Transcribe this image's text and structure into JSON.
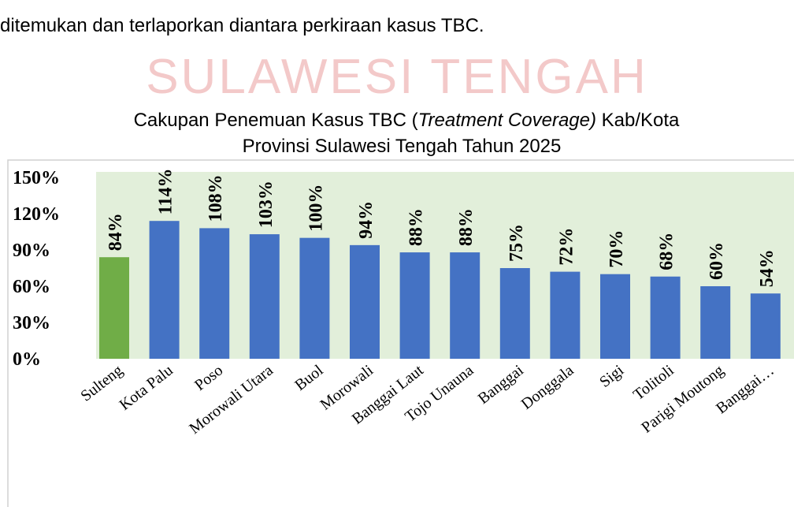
{
  "intro_text": "ditemukan dan terlaporkan diantara perkiraan kasus TBC.",
  "watermark": "SULAWESI TENGAH",
  "chart_data": {
    "type": "bar",
    "title": [
      "Cakupan Penemuan Kasus TBC (",
      "Treatment Coverage)",
      " Kab/Kota",
      "Provinsi Sulawesi Tengah Tahun 2025"
    ],
    "categories": [
      "Sulteng",
      "Kota Palu",
      "Poso",
      "Morowali Utara",
      "Buol",
      "Morowali",
      "Banggai Laut",
      "Tojo Unauna",
      "Banggai",
      "Donggala",
      "Sigi",
      "Tolitoli",
      "Parigi Moutong",
      "Banggai…"
    ],
    "values": [
      84,
      114,
      108,
      103,
      100,
      94,
      88,
      88,
      75,
      72,
      70,
      68,
      60,
      54
    ],
    "value_labels": [
      "84%",
      "114%",
      "108%",
      "103%",
      "100%",
      "94%",
      "88%",
      "88%",
      "75%",
      "72%",
      "70%",
      "68%",
      "60%",
      "54%"
    ],
    "colors": [
      "#70ad47",
      "#4472c4",
      "#4472c4",
      "#4472c4",
      "#4472c4",
      "#4472c4",
      "#4472c4",
      "#4472c4",
      "#4472c4",
      "#4472c4",
      "#4472c4",
      "#4472c4",
      "#4472c4",
      "#4472c4"
    ],
    "plot_background": "#e2efda",
    "ylim": [
      0,
      150
    ],
    "yticks": [
      {
        "value": 0,
        "label": "0%"
      },
      {
        "value": 30,
        "label": "30%"
      },
      {
        "value": 60,
        "label": "60%"
      },
      {
        "value": 90,
        "label": "90%"
      },
      {
        "value": 120,
        "label": "120%"
      },
      {
        "value": 150,
        "label": "150%"
      }
    ],
    "grid": false
  }
}
